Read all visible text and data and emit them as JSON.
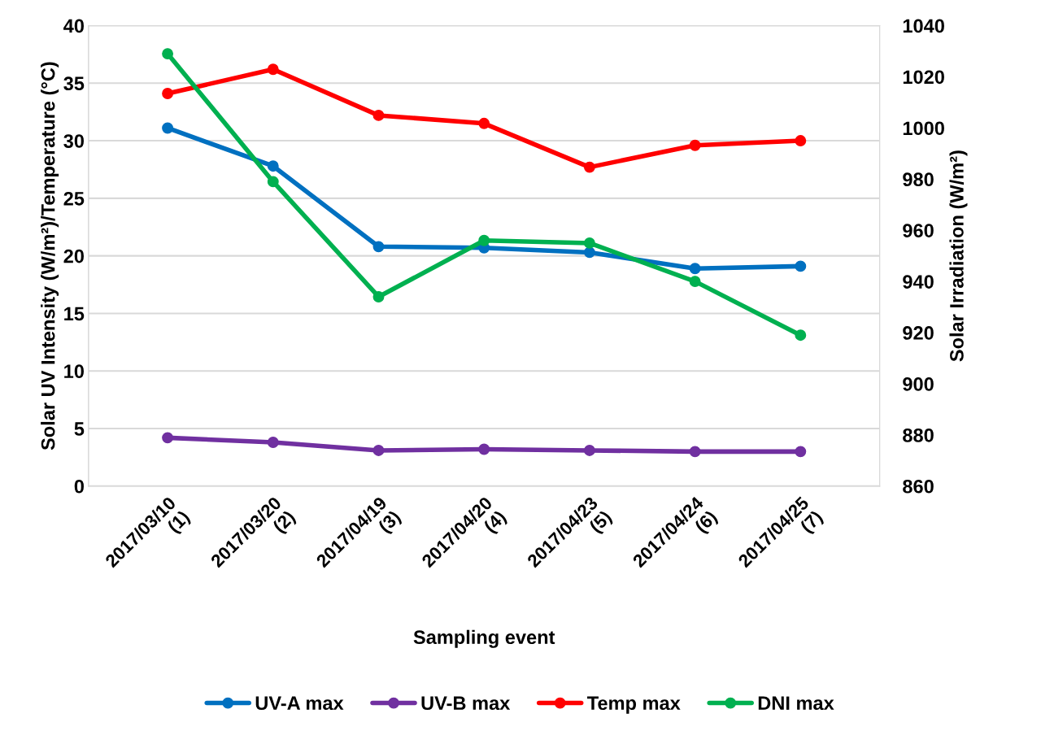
{
  "chart_data": {
    "type": "line",
    "categories": [
      "2017/03/10\n(1)",
      "2017/03/20\n(2)",
      "2017/04/19\n(3)",
      "2017/04/20\n(4)",
      "2017/04/23\n(5)",
      "2017/04/24\n(6)",
      "2017/04/25\n(7)"
    ],
    "series": [
      {
        "name": "UV-A max",
        "color": "#0070c0",
        "values": [
          31.1,
          27.8,
          20.8,
          20.7,
          20.3,
          18.9,
          19.1
        ]
      },
      {
        "name": "UV-B max",
        "color": "#7030a0",
        "values": [
          4.2,
          3.8,
          3.1,
          3.2,
          3.1,
          3.0,
          3.0
        ]
      },
      {
        "name": "Temp max",
        "color": "#ff0000",
        "values": [
          34.1,
          36.2,
          32.2,
          31.5,
          27.7,
          29.6,
          30.0
        ]
      },
      {
        "name": "DNI max",
        "color": "#00b050",
        "axis": "y2",
        "values": [
          1029,
          979,
          934,
          956,
          955,
          940,
          919
        ]
      }
    ],
    "xlabel": "Sampling event",
    "ylabel": "Solar UV Intensity (W/m²)/Temperature (°C)",
    "y2label": "Solar Irradiation (W/m²)",
    "ylim": [
      0,
      40
    ],
    "yticks": [
      0,
      5,
      10,
      15,
      20,
      25,
      30,
      35,
      40
    ],
    "y2lim": [
      860,
      1040
    ],
    "y2ticks": [
      860,
      880,
      900,
      920,
      940,
      960,
      980,
      1000,
      1020,
      1040
    ],
    "grid": "y",
    "legend": "bottom",
    "marker": "circle",
    "line_style": "solid"
  }
}
